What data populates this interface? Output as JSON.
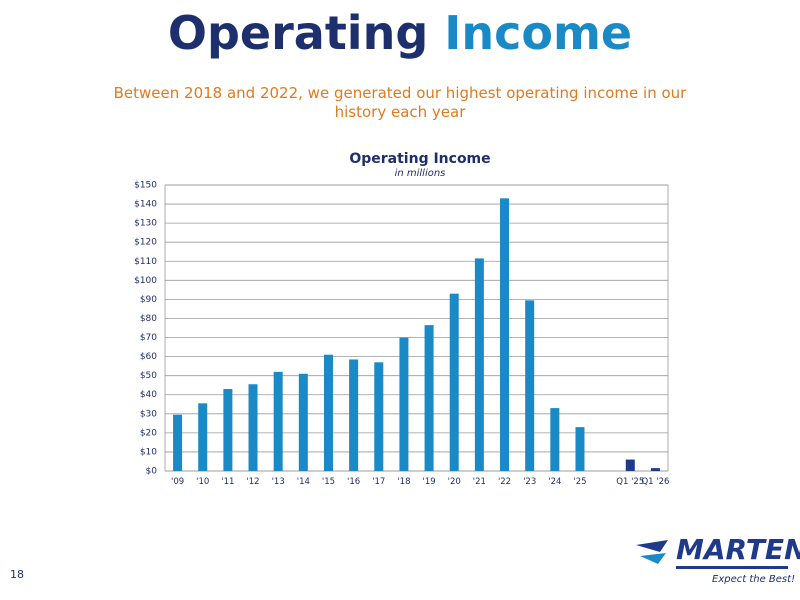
{
  "slide": {
    "title": [
      "Operating",
      "Income"
    ],
    "subtitle": "Between 2018 and 2022, we generated our highest operating income in our history each year",
    "page_number": "18",
    "logo": {
      "name": "MARTEN",
      "tagline": "Expect the Best!"
    }
  },
  "chart_data": {
    "type": "bar",
    "title": "Operating Income",
    "subtitle": "in millions",
    "categories": [
      "'09",
      "'10",
      "'11",
      "'12",
      "'13",
      "'14",
      "'15",
      "'16",
      "'17",
      "'18",
      "'19",
      "'20",
      "'21",
      "'22",
      "'23",
      "'24",
      "'25",
      null,
      "Q1 '25",
      "Q1 '26"
    ],
    "values": [
      29.5,
      35.5,
      43,
      45.5,
      52,
      51,
      61,
      58.5,
      57,
      70,
      76.5,
      93,
      111.5,
      143,
      89.5,
      33,
      23,
      null,
      6,
      1.5
    ],
    "colors": [
      "#1a8ac6",
      "#1a8ac6",
      "#1a8ac6",
      "#1a8ac6",
      "#1a8ac6",
      "#1a8ac6",
      "#1a8ac6",
      "#1a8ac6",
      "#1a8ac6",
      "#1a8ac6",
      "#1a8ac6",
      "#1a8ac6",
      "#1a8ac6",
      "#1a8ac6",
      "#1a8ac6",
      "#1a8ac6",
      "#1a8ac6",
      null,
      "#1f3a8a",
      "#1f3a8a"
    ],
    "ylim": [
      0,
      150
    ],
    "yticks": [
      {
        "value": 0,
        "label": "$0"
      },
      {
        "value": 10,
        "label": "$10"
      },
      {
        "value": 20,
        "label": "$20"
      },
      {
        "value": 30,
        "label": "$30"
      },
      {
        "value": 40,
        "label": "$40"
      },
      {
        "value": 50,
        "label": "$50"
      },
      {
        "value": 60,
        "label": "$60"
      },
      {
        "value": 70,
        "label": "$70"
      },
      {
        "value": 80,
        "label": "$80"
      },
      {
        "value": 90,
        "label": "$90"
      },
      {
        "value": 100,
        "label": "$100"
      },
      {
        "value": 110,
        "label": "$110"
      },
      {
        "value": 120,
        "label": "$120"
      },
      {
        "value": 130,
        "label": "$130"
      },
      {
        "value": 140,
        "label": "$140"
      },
      {
        "value": 150,
        "label": "$150"
      }
    ],
    "grid": true
  }
}
